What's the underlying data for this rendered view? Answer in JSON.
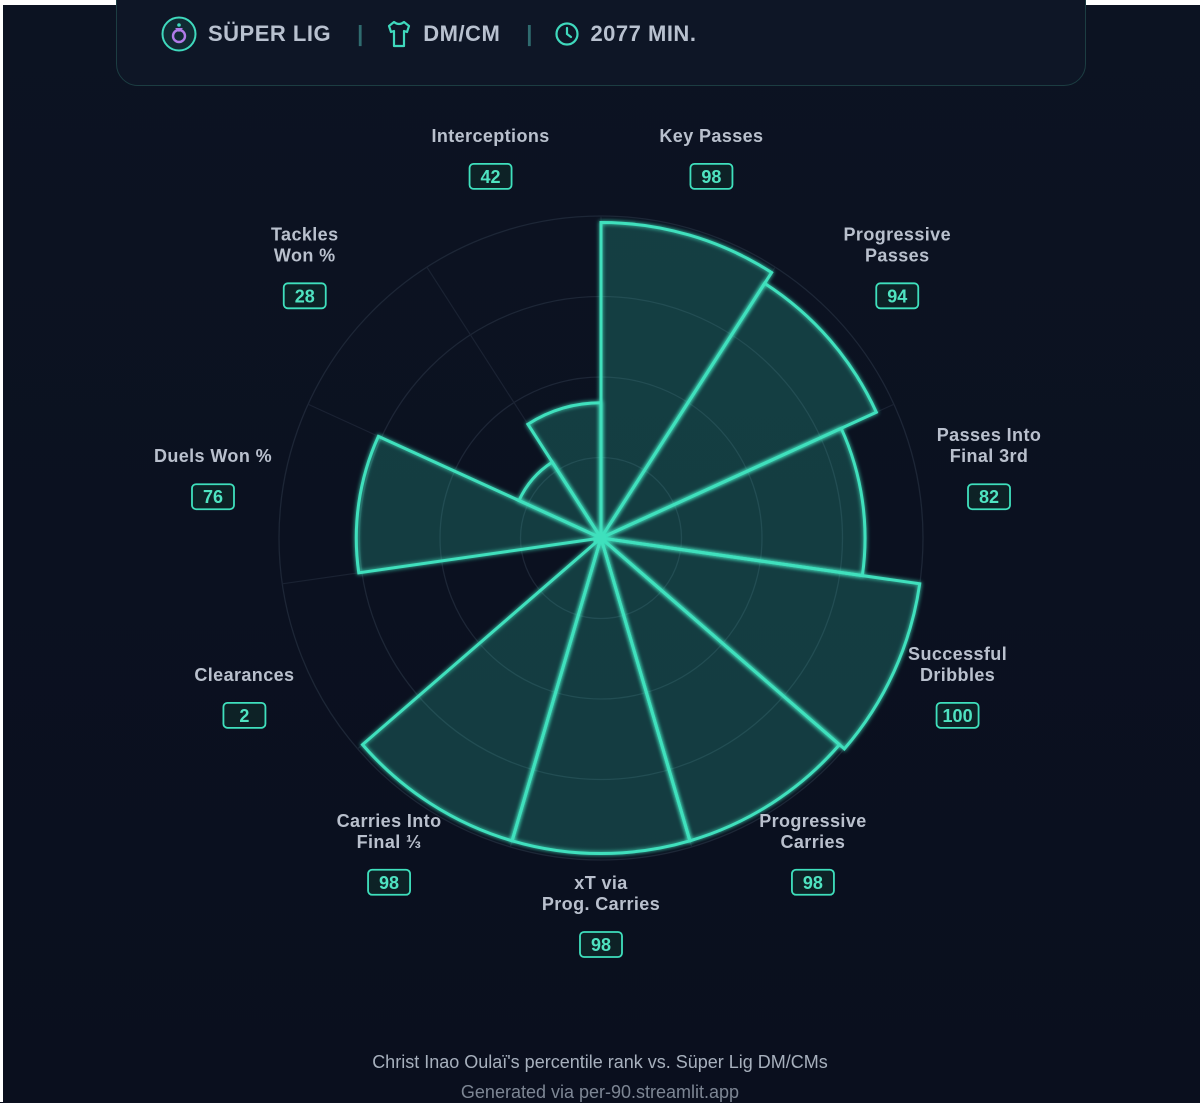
{
  "header": {
    "league": "SÜPER LIG",
    "position": "DM/CM",
    "minutes": "2077 MIN.",
    "separator": "|"
  },
  "icons": {
    "league": "league-badge-icon",
    "position": "jersey-icon",
    "minutes": "clock-icon"
  },
  "colors": {
    "accent": "#3fe0bd",
    "background": "#0b1020",
    "label": "#b9c0cd"
  },
  "chart_data": {
    "type": "polar-bar",
    "scale": [
      0,
      100
    ],
    "grid": true,
    "categories": [
      "Key Passes",
      "Progressive Passes",
      "Passes Into Final 3rd",
      "Successful Dribbles",
      "Progressive Carries",
      "xT via Prog. Carries",
      "Carries Into Final ⅓",
      "Clearances",
      "Duels Won %",
      "Tackles Won %",
      "Interceptions"
    ],
    "label_lines": [
      [
        "Key Passes"
      ],
      [
        "Progressive",
        "Passes"
      ],
      [
        "Passes Into",
        "Final 3rd"
      ],
      [
        "Successful",
        "Dribbles"
      ],
      [
        "Progressive",
        "Carries"
      ],
      [
        "xT via",
        "Prog. Carries"
      ],
      [
        "Carries Into",
        "Final ⅓"
      ],
      [
        "Clearances"
      ],
      [
        "Duels Won %"
      ],
      [
        "Tackles",
        "Won %"
      ],
      [
        "Interceptions"
      ]
    ],
    "values": [
      98,
      94,
      82,
      100,
      98,
      98,
      98,
      2,
      76,
      28,
      42
    ]
  },
  "footer": {
    "caption": "Christ Inao Oulaï's percentile rank vs. Süper Lig DM/CMs",
    "credit": "Generated via per-90.streamlit.app"
  }
}
